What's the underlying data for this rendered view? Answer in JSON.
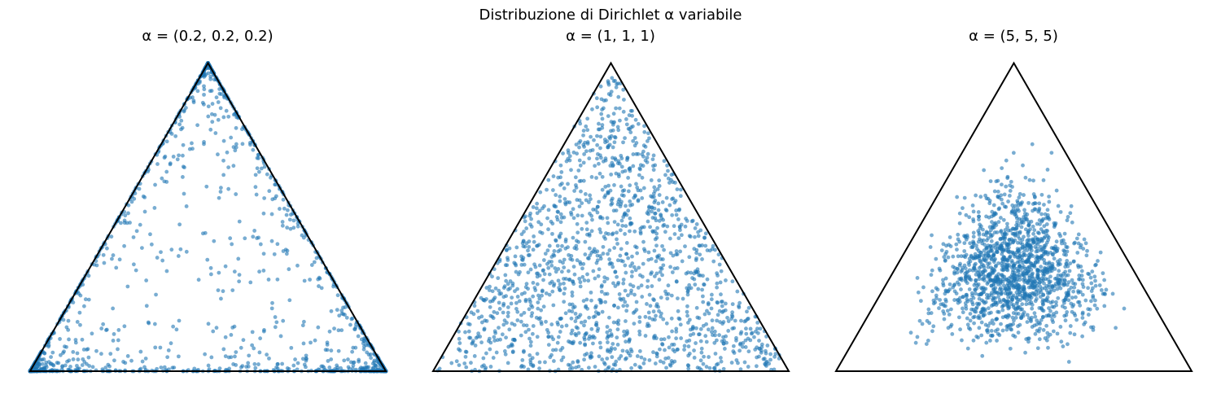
{
  "figure": {
    "suptitle": "Distribuzione di Dirichlet α variabile"
  },
  "chart_data": [
    {
      "type": "scatter",
      "title": "α = (0.2, 0.2, 0.2)",
      "alpha": [
        0.2,
        0.2,
        0.2
      ],
      "n_points": 1500,
      "point_color": "#1f77b4",
      "point_opacity": 0.6,
      "axes_visible": false,
      "xlim": [
        0,
        1
      ],
      "ylim": [
        0,
        0.866
      ],
      "simplex_vertices": [
        [
          0,
          0
        ],
        [
          1,
          0
        ],
        [
          0.5,
          0.866
        ]
      ]
    },
    {
      "type": "scatter",
      "title": "α = (1, 1, 1)",
      "alpha": [
        1,
        1,
        1
      ],
      "n_points": 1500,
      "point_color": "#1f77b4",
      "point_opacity": 0.6,
      "axes_visible": false,
      "xlim": [
        0,
        1
      ],
      "ylim": [
        0,
        0.866
      ],
      "simplex_vertices": [
        [
          0,
          0
        ],
        [
          1,
          0
        ],
        [
          0.5,
          0.866
        ]
      ]
    },
    {
      "type": "scatter",
      "title": "α = (5, 5, 5)",
      "alpha": [
        5,
        5,
        5
      ],
      "n_points": 1500,
      "point_color": "#1f77b4",
      "point_opacity": 0.6,
      "axes_visible": false,
      "xlim": [
        0,
        1
      ],
      "ylim": [
        0,
        0.866
      ],
      "simplex_vertices": [
        [
          0,
          0
        ],
        [
          1,
          0
        ],
        [
          0.5,
          0.866
        ]
      ]
    }
  ]
}
